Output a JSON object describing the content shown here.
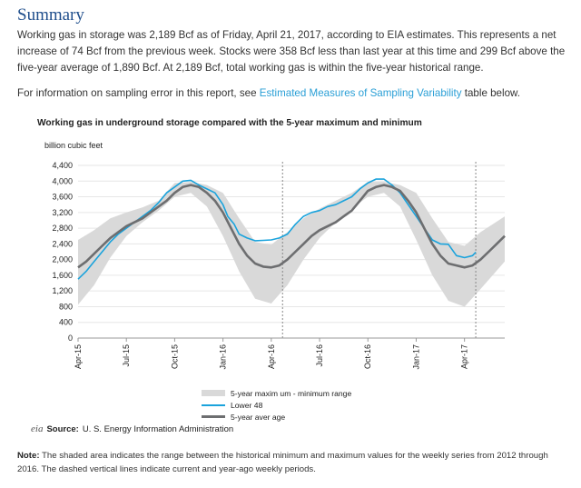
{
  "summary": {
    "heading": "Summary",
    "paragraph1": "Working gas in storage was 2,189 Bcf as of Friday, April 21, 2017, according to EIA estimates. This represents a net increase of 74 Bcf from the previous week. Stocks were 358 Bcf less than last year at this time and 299 Bcf above the five-year average of 1,890 Bcf. At 2,189 Bcf, total working gas is within the five-year historical range.",
    "paragraph2_prefix": "For information on sampling error in this report, see ",
    "paragraph2_link": "Estimated Measures of Sampling Variability",
    "paragraph2_suffix": " table below."
  },
  "chart_data": {
    "type": "area",
    "title": "Working gas in underground storage compared with the  5-year maximum and minimum",
    "ylabel": "billion  cubic feet",
    "ylim": [
      0,
      4400
    ],
    "yticks": [
      "4,400",
      "4,000",
      "3,600",
      "3,200",
      "2,800",
      "2,400",
      "2,000",
      "1,600",
      "1,200",
      "800",
      "400",
      "0"
    ],
    "x_tick_labels": [
      "Apr-15",
      "Jul-15",
      "Oct-15",
      "Jan-16",
      "Apr-16",
      "Jul-16",
      "Oct-16",
      "Jan-17",
      "Apr-17"
    ],
    "x_tick_months": [
      0,
      3,
      6,
      9,
      12,
      15,
      18,
      21,
      24
    ],
    "xlim_months": [
      0,
      26.5
    ],
    "current_period_lines_months": [
      12.7,
      24.7
    ],
    "grid": true,
    "legend": [
      {
        "label": "5-year maxim um  -  minimum range",
        "color": "#d9d9d9"
      },
      {
        "label": "Lower 48",
        "color": "#1aa3dc"
      },
      {
        "label": "5-year aver age",
        "color": "#6d6e70"
      }
    ],
    "series": [
      {
        "name": "5-year maxim um  -  minimum range",
        "kind": "band",
        "x": [
          0,
          1,
          2,
          3,
          4,
          5,
          6,
          7,
          8,
          9,
          10,
          11,
          12,
          13,
          14,
          15,
          16,
          17,
          18,
          19,
          20,
          21,
          22,
          23,
          24,
          25,
          26.5
        ],
        "max": [
          2500,
          2750,
          3050,
          3200,
          3330,
          3500,
          3950,
          3980,
          3900,
          3700,
          3050,
          2450,
          2380,
          2700,
          3050,
          3300,
          3500,
          3700,
          3980,
          3980,
          3900,
          3700,
          3050,
          2450,
          2350,
          2700,
          3100
        ],
        "min": [
          850,
          1350,
          2050,
          2600,
          2950,
          3250,
          3600,
          3700,
          3350,
          2600,
          1700,
          1000,
          880,
          1350,
          2000,
          2550,
          2950,
          3300,
          3600,
          3700,
          3350,
          2500,
          1600,
          950,
          800,
          1250,
          1950
        ]
      },
      {
        "name": "Lower 48",
        "x": [
          0,
          0.5,
          1,
          1.5,
          2,
          2.5,
          3,
          3.5,
          4,
          4.5,
          5,
          5.5,
          6,
          6.5,
          7,
          7.5,
          8,
          8.5,
          9,
          9.3,
          9.7,
          10,
          10.5,
          11,
          11.5,
          12,
          12.5,
          13,
          13.5,
          14,
          14.5,
          15,
          15.5,
          16,
          16.5,
          17,
          17.5,
          18,
          18.5,
          19,
          19.5,
          20,
          20.5,
          21,
          21.5,
          22,
          22.5,
          23,
          23.5,
          24,
          24.5,
          24.7
        ],
        "values": [
          1500,
          1700,
          1950,
          2200,
          2450,
          2650,
          2800,
          2950,
          3100,
          3250,
          3450,
          3700,
          3850,
          4000,
          4020,
          3900,
          3800,
          3700,
          3400,
          3100,
          2900,
          2650,
          2550,
          2480,
          2490,
          2500,
          2550,
          2650,
          2900,
          3100,
          3200,
          3250,
          3350,
          3400,
          3500,
          3600,
          3800,
          3950,
          4050,
          4050,
          3900,
          3700,
          3400,
          3100,
          2800,
          2500,
          2400,
          2390,
          2100,
          2050,
          2100,
          2189
        ]
      },
      {
        "name": "5-year aver age",
        "x": [
          0,
          0.5,
          1,
          1.5,
          2,
          2.5,
          3,
          3.5,
          4,
          4.5,
          5,
          5.5,
          6,
          6.5,
          7,
          7.5,
          8,
          8.5,
          9,
          9.5,
          10,
          10.5,
          11,
          11.5,
          12,
          12.5,
          13,
          13.5,
          14,
          14.5,
          15,
          15.5,
          16,
          16.5,
          17,
          17.5,
          18,
          18.5,
          19,
          19.5,
          20,
          20.5,
          21,
          21.5,
          22,
          22.5,
          23,
          23.5,
          24,
          24.5,
          25,
          25.5,
          26,
          26.5
        ],
        "values": [
          1800,
          1950,
          2150,
          2350,
          2550,
          2700,
          2850,
          2950,
          3050,
          3200,
          3350,
          3500,
          3700,
          3850,
          3900,
          3850,
          3700,
          3500,
          3200,
          2800,
          2400,
          2100,
          1900,
          1820,
          1800,
          1850,
          2000,
          2200,
          2400,
          2600,
          2750,
          2850,
          2950,
          3100,
          3250,
          3500,
          3750,
          3850,
          3900,
          3850,
          3750,
          3500,
          3200,
          2800,
          2400,
          2100,
          1900,
          1850,
          1800,
          1850,
          2000,
          2200,
          2400,
          2600
        ]
      }
    ]
  },
  "legend_text": {
    "band": "5-year maxim um  -  minimum range",
    "lower48": "Lower 48",
    "avg": "5-year aver age"
  },
  "source": {
    "logo_text": "eia",
    "label": "Source:",
    "text": "U. S. Energy Information Administration"
  },
  "note": {
    "label": "Note:",
    "text": "The shaded area indicates the range between the historical minimum and maximum values for the weekly series from 2012 through 2016. The dashed vertical lines indicate current and year-ago weekly periods."
  },
  "colors": {
    "heading": "#1f4e8c",
    "link": "#2a9fd6",
    "band": "#d9d9d9",
    "lower48": "#1aa3dc",
    "avg": "#6d6e70",
    "grid": "#e6e6e6"
  }
}
